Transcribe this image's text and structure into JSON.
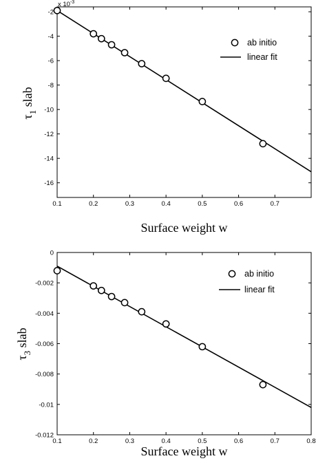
{
  "chart_data": [
    {
      "type": "scatter",
      "xlabel": "Surface weight w",
      "ylabel_symbol": "τ",
      "ylabel_subscript": "1",
      "ylabel_suffix": "slab",
      "exponent_label": "x 10",
      "exponent_power": "-3",
      "xlim": [
        0.1,
        0.8
      ],
      "ylim": [
        -17.2,
        -1.6
      ],
      "xticks": [
        0.1,
        0.2,
        0.3,
        0.4,
        0.5,
        0.6,
        0.7
      ],
      "xtick_labels": [
        "0.1",
        "0.2",
        "0.3",
        "0.4",
        "0.5",
        "0.6",
        "0.7"
      ],
      "yticks": [
        -2,
        -4,
        -6,
        -8,
        -10,
        -12,
        -14,
        -16
      ],
      "ytick_labels": [
        "-2",
        "-4",
        "-6",
        "-8",
        "-10",
        "-12",
        "-14",
        "-16"
      ],
      "grid": false,
      "legend_position": "top-right",
      "series": [
        {
          "name": "ab initio",
          "marker": "open-circle",
          "x": [
            0.1,
            0.2,
            0.222,
            0.25,
            0.286,
            0.333,
            0.4,
            0.5,
            0.667
          ],
          "y": [
            -1.9,
            -3.8,
            -4.2,
            -4.7,
            -5.35,
            -6.25,
            -7.45,
            -9.35,
            -12.8
          ]
        },
        {
          "name": "linear fit",
          "marker": "line",
          "x": [
            0.1,
            0.8
          ],
          "y": [
            -1.9,
            -15.1
          ]
        }
      ]
    },
    {
      "type": "scatter",
      "xlabel": "Surface weight w",
      "ylabel_symbol": "τ",
      "ylabel_subscript": "3",
      "ylabel_suffix": "slab",
      "xlim": [
        0.1,
        0.8
      ],
      "ylim": [
        -0.012,
        0
      ],
      "xticks": [
        0.1,
        0.2,
        0.3,
        0.4,
        0.5,
        0.6,
        0.7,
        0.8
      ],
      "xtick_labels": [
        "0.1",
        "0.2",
        "0.3",
        "0.4",
        "0.5",
        "0.6",
        "0.7",
        "0.8"
      ],
      "yticks": [
        0,
        -0.002,
        -0.004,
        -0.006,
        -0.008,
        -0.01,
        -0.012
      ],
      "ytick_labels": [
        "0",
        "-0.002",
        "-0.004",
        "-0.006",
        "-0.008",
        "-0.01",
        "-0.012"
      ],
      "grid": false,
      "legend_position": "top-right",
      "series": [
        {
          "name": "ab initio",
          "marker": "open-circle",
          "x": [
            0.1,
            0.2,
            0.222,
            0.25,
            0.286,
            0.333,
            0.4,
            0.5,
            0.667
          ],
          "y": [
            -0.0012,
            -0.0022,
            -0.0025,
            -0.0029,
            -0.0033,
            -0.0039,
            -0.0047,
            -0.0062,
            -0.0087
          ]
        },
        {
          "name": "linear fit",
          "marker": "line",
          "x": [
            0.1,
            0.8
          ],
          "y": [
            -0.0009,
            -0.0102
          ]
        }
      ]
    }
  ]
}
